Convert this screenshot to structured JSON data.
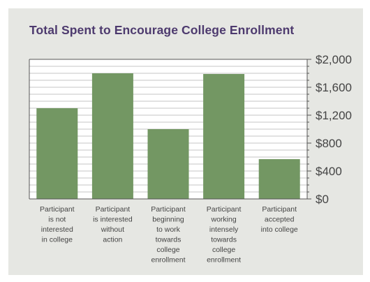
{
  "chart_data": {
    "type": "bar",
    "title": "Total Spent to Encourage College Enrollment",
    "categories": [
      "Participant is not interested in college",
      "Participant is interested without action",
      "Participant beginning to work towards college enrollment",
      "Participant working intensely towards college enrollment",
      "Participant accepted into college"
    ],
    "category_label_lines": [
      [
        "Participant",
        "is not",
        "interested",
        "in college"
      ],
      [
        "Participant",
        "is interested",
        "without",
        "action"
      ],
      [
        "Participant",
        "beginning",
        "to work",
        "towards",
        "college",
        "enrollment"
      ],
      [
        "Participant",
        "working",
        "intensely",
        "towards",
        "college",
        "enrollment"
      ],
      [
        "Participant",
        "accepted",
        "into college"
      ]
    ],
    "values": [
      1300,
      1800,
      1000,
      1790,
      570
    ],
    "ylim": [
      0,
      2000
    ],
    "yticks": [
      0,
      400,
      800,
      1200,
      1600,
      2000
    ],
    "ytick_labels": [
      "$0",
      "$400",
      "$800",
      "$1,200",
      "$1,600",
      "$2,000"
    ],
    "xlabel": "",
    "ylabel": "",
    "grid": true,
    "y_axis_side": "right",
    "colors": {
      "bar": "#739763",
      "title": "#4d3a6e",
      "text": "#444444",
      "grid": "#c4c4c4",
      "axis": "#555555",
      "plot_background": "#ffffff"
    }
  }
}
